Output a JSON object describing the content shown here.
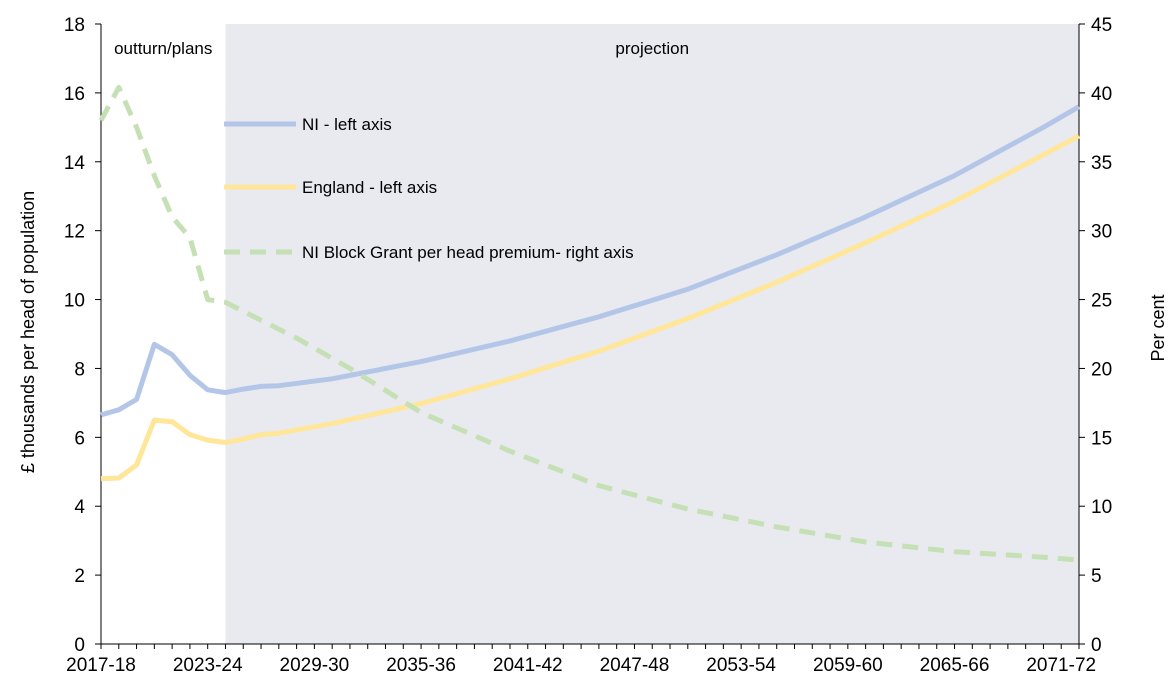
{
  "chart_data": {
    "type": "line",
    "title": "",
    "ylabel_left": "£ thousands per head of population",
    "ylabel_right": "Per cent",
    "ylim_left": [
      0,
      18
    ],
    "ylim_right": [
      0,
      45
    ],
    "yticks_left": [
      "0",
      "2",
      "4",
      "6",
      "8",
      "10",
      "12",
      "14",
      "16",
      "18"
    ],
    "yticks_right": [
      "0",
      "5",
      "10",
      "15",
      "20",
      "25",
      "30",
      "35",
      "40",
      "45"
    ],
    "x_tick_labels": [
      "2017-18",
      "2023-24",
      "2029-30",
      "2035-36",
      "2041-42",
      "2047-48",
      "2053-54",
      "2059-60",
      "2065-66",
      "2071-72"
    ],
    "x_years": [
      2017,
      2072
    ],
    "grid": false,
    "legend_placement": "upper-left-center",
    "regions": [
      {
        "label": "outturn/plans",
        "from": 2017,
        "to": 2024,
        "color": "#ffffff"
      },
      {
        "label": "projection",
        "from": 2024,
        "to": 2072,
        "color": "#e8eaf0"
      }
    ],
    "series": [
      {
        "name": "NI - left axis",
        "axis": "left",
        "color": "#b4c6e7",
        "style": "solid",
        "points": [
          [
            2017,
            6.65
          ],
          [
            2018,
            6.8
          ],
          [
            2019,
            7.1
          ],
          [
            2020,
            8.7
          ],
          [
            2021,
            8.4
          ],
          [
            2022,
            7.8
          ],
          [
            2023,
            7.38
          ],
          [
            2024,
            7.3
          ],
          [
            2025,
            7.4
          ],
          [
            2026,
            7.48
          ],
          [
            2027,
            7.5
          ],
          [
            2030,
            7.7
          ],
          [
            2035,
            8.2
          ],
          [
            2040,
            8.8
          ],
          [
            2045,
            9.5
          ],
          [
            2050,
            10.3
          ],
          [
            2055,
            11.3
          ],
          [
            2060,
            12.4
          ],
          [
            2065,
            13.6
          ],
          [
            2070,
            15.0
          ],
          [
            2072,
            15.6
          ]
        ]
      },
      {
        "name": "England  - left axis",
        "axis": "left",
        "color": "#ffe699",
        "style": "solid",
        "points": [
          [
            2017,
            4.8
          ],
          [
            2018,
            4.82
          ],
          [
            2019,
            5.2
          ],
          [
            2020,
            6.5
          ],
          [
            2021,
            6.45
          ],
          [
            2022,
            6.08
          ],
          [
            2023,
            5.92
          ],
          [
            2024,
            5.85
          ],
          [
            2025,
            5.95
          ],
          [
            2026,
            6.08
          ],
          [
            2027,
            6.12
          ],
          [
            2030,
            6.4
          ],
          [
            2035,
            6.98
          ],
          [
            2040,
            7.7
          ],
          [
            2045,
            8.5
          ],
          [
            2050,
            9.45
          ],
          [
            2055,
            10.5
          ],
          [
            2060,
            11.65
          ],
          [
            2065,
            12.85
          ],
          [
            2070,
            14.2
          ],
          [
            2072,
            14.75
          ]
        ]
      },
      {
        "name": "NI Block Grant per head premium- right axis",
        "axis": "right",
        "color": "#c5e0b4",
        "style": "dashed",
        "points": [
          [
            2017,
            38
          ],
          [
            2018,
            40.4
          ],
          [
            2019,
            37.5
          ],
          [
            2020,
            34
          ],
          [
            2021,
            31
          ],
          [
            2022,
            29.5
          ],
          [
            2023,
            25
          ],
          [
            2024,
            24.8
          ],
          [
            2026,
            23.5
          ],
          [
            2028,
            22.2
          ],
          [
            2031,
            20
          ],
          [
            2035,
            16.8
          ],
          [
            2040,
            14
          ],
          [
            2045,
            11.5
          ],
          [
            2050,
            9.8
          ],
          [
            2055,
            8.5
          ],
          [
            2060,
            7.4
          ],
          [
            2065,
            6.7
          ],
          [
            2070,
            6.3
          ],
          [
            2072,
            6.1
          ]
        ]
      }
    ]
  }
}
